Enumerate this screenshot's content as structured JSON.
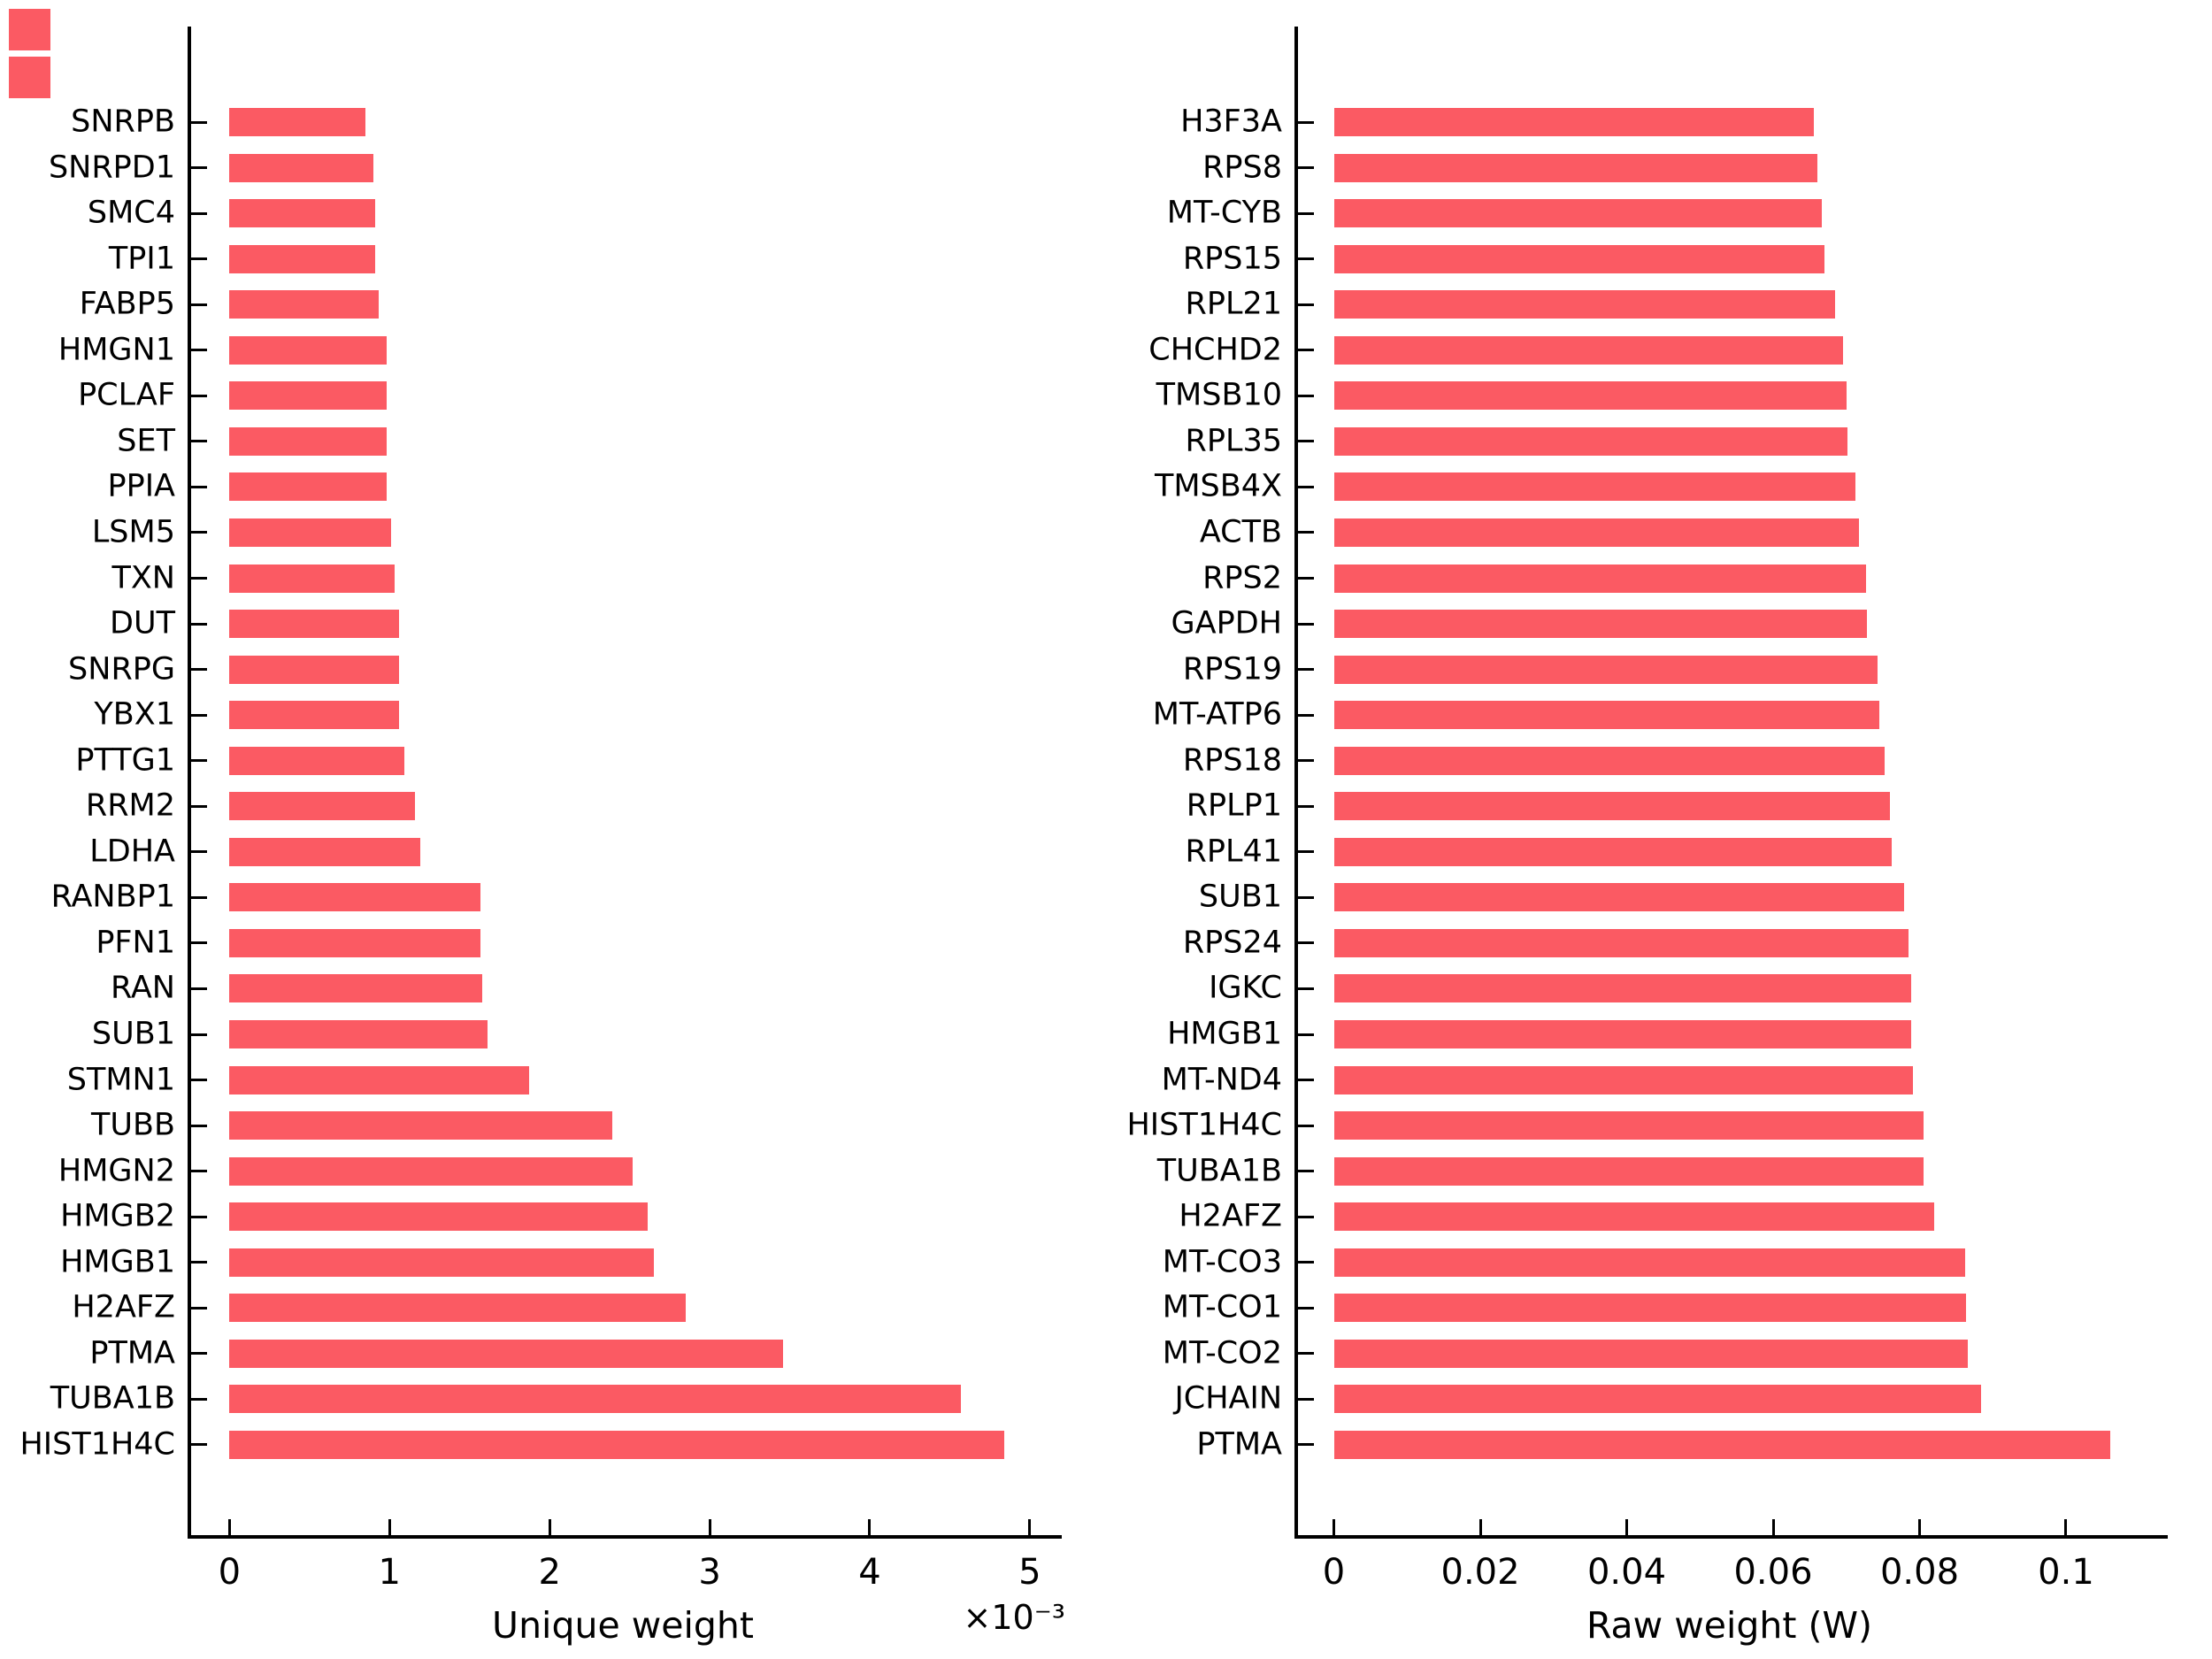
{
  "colors": {
    "bar": "#fb5a63",
    "axis": "#000000",
    "background": "#ffffff"
  },
  "corner_swatches": [
    {
      "name": "swatch-top",
      "color": "#fb5a63"
    },
    {
      "name": "swatch-bottom",
      "color": "#fb5a63"
    }
  ],
  "chart_data": [
    {
      "type": "bar",
      "orientation": "horizontal",
      "title": "",
      "xlabel": "Unique weight",
      "ylabel": "",
      "offset_label": "×10⁻³",
      "grid": false,
      "legend": "none",
      "xlim": [
        -0.00024,
        0.0052
      ],
      "ticks": [
        0,
        0.001,
        0.002,
        0.003,
        0.004,
        0.005
      ],
      "tick_labels": [
        "0",
        "1",
        "2",
        "3",
        "4",
        "5"
      ],
      "categories": [
        "SNRPB",
        "SNRPD1",
        "SMC4",
        "TPI1",
        "FABP5",
        "HMGN1",
        "PCLAF",
        "SET",
        "PPIA",
        "LSM5",
        "TXN",
        "DUT",
        "SNRPG",
        "YBX1",
        "PTTG1",
        "RRM2",
        "LDHA",
        "RANBP1",
        "PFN1",
        "RAN",
        "SUB1",
        "STMN1",
        "TUBB",
        "HMGN2",
        "HMGB2",
        "HMGB1",
        "H2AFZ",
        "PTMA",
        "TUBA1B",
        "HIST1H4C"
      ],
      "values": [
        0.00085,
        0.0009,
        0.00091,
        0.00091,
        0.00093,
        0.00098,
        0.00098,
        0.00098,
        0.00098,
        0.00101,
        0.00103,
        0.00106,
        0.00106,
        0.00106,
        0.00109,
        0.00116,
        0.00119,
        0.00157,
        0.00157,
        0.00158,
        0.00161,
        0.00187,
        0.00239,
        0.00252,
        0.00261,
        0.00265,
        0.00285,
        0.00346,
        0.00457,
        0.00484
      ]
    },
    {
      "type": "bar",
      "orientation": "horizontal",
      "title": "",
      "xlabel": "Raw weight (W)",
      "ylabel": "",
      "offset_label": "",
      "grid": false,
      "legend": "none",
      "xlim": [
        -0.0049,
        0.1139
      ],
      "ticks": [
        0,
        0.02,
        0.04,
        0.06,
        0.08,
        0.1
      ],
      "tick_labels": [
        "0",
        "0.02",
        "0.04",
        "0.06",
        "0.08",
        "0.1"
      ],
      "categories": [
        "H3F3A",
        "RPS8",
        "MT-CYB",
        "RPS15",
        "RPL21",
        "CHCHD2",
        "TMSB10",
        "RPL35",
        "TMSB4X",
        "ACTB",
        "RPS2",
        "GAPDH",
        "RPS19",
        "MT-ATP6",
        "RPS18",
        "RPLP1",
        "RPL41",
        "SUB1",
        "RPS24",
        "IGKC",
        "HMGB1",
        "MT-ND4",
        "HIST1H4C",
        "TUBA1B",
        "H2AFZ",
        "MT-CO3",
        "MT-CO1",
        "MT-CO2",
        "JCHAIN",
        "PTMA"
      ],
      "values": [
        0.0656,
        0.0661,
        0.0667,
        0.067,
        0.0684,
        0.0695,
        0.07,
        0.0702,
        0.0712,
        0.0717,
        0.0727,
        0.0728,
        0.0743,
        0.0745,
        0.0752,
        0.076,
        0.0762,
        0.0779,
        0.0785,
        0.0788,
        0.0789,
        0.0791,
        0.0805,
        0.0806,
        0.082,
        0.0862,
        0.0863,
        0.0866,
        0.0884,
        0.1061
      ]
    }
  ]
}
